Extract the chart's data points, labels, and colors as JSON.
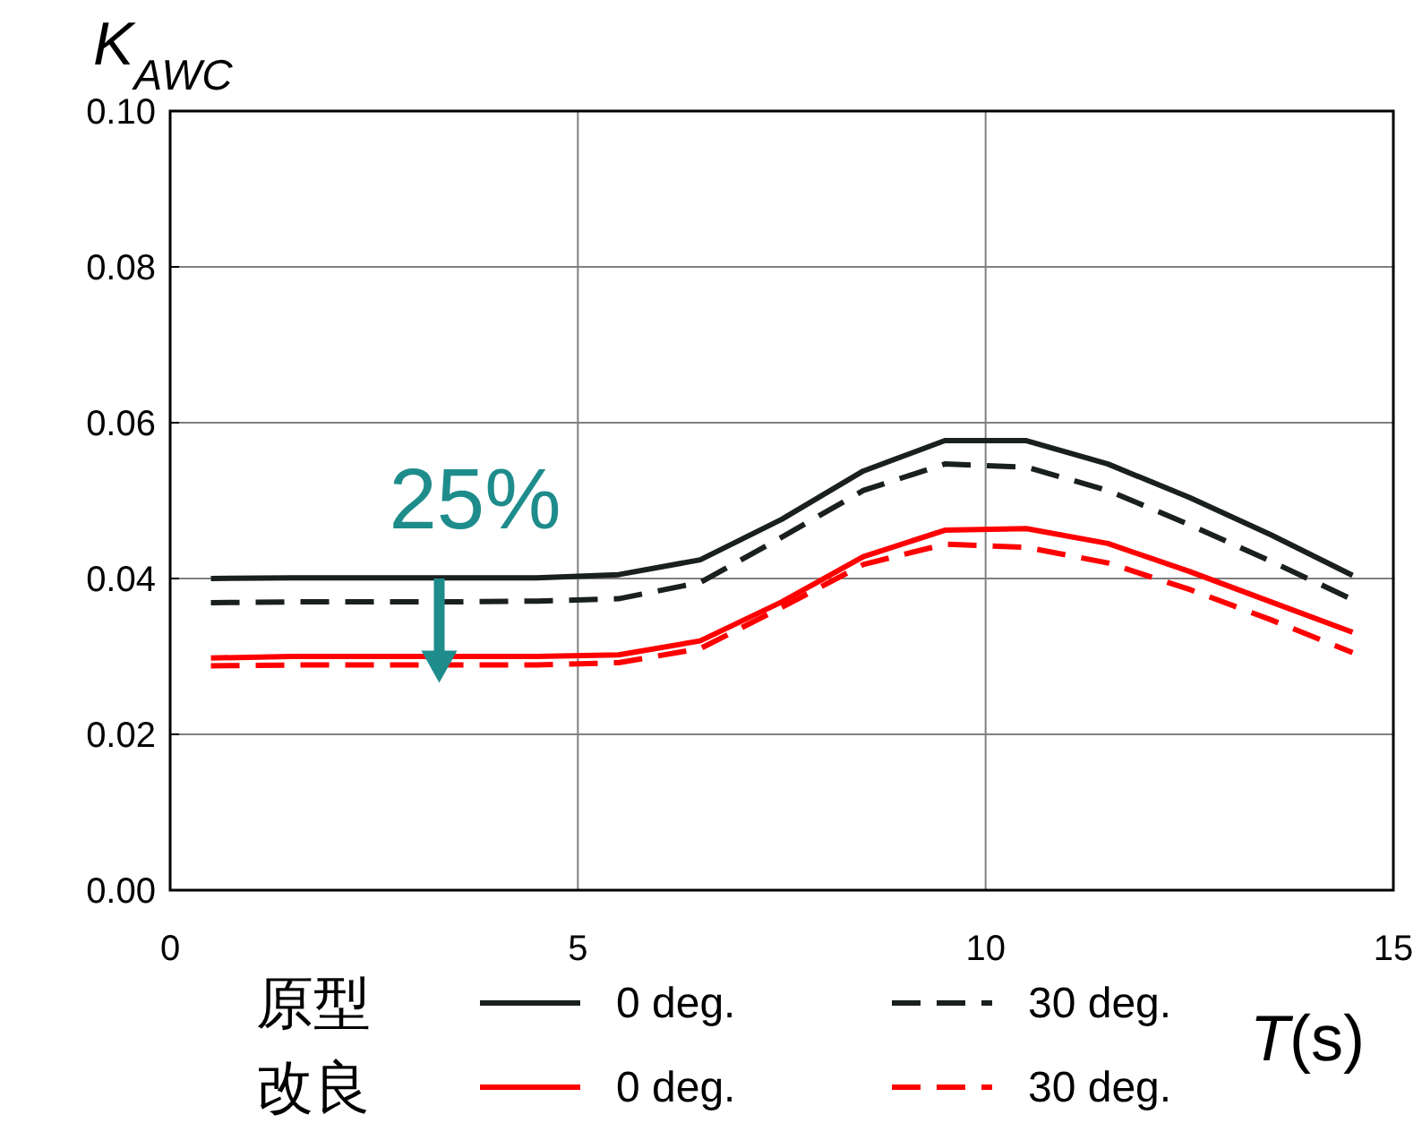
{
  "chart_data": {
    "type": "line",
    "ylabel": "K$_{AWC}$",
    "xlabel": "T(s)",
    "x": [
      0.5,
      1.5,
      2.5,
      3.5,
      4.5,
      5.5,
      6.5,
      7.5,
      8.5,
      9.5,
      10.5,
      11.5,
      12.5,
      13.5,
      14.5
    ],
    "xlim": [
      0,
      15
    ],
    "xticks": [
      0,
      5,
      10,
      15
    ],
    "ylim": [
      0,
      0.1
    ],
    "yticks": [
      {
        "value": 0,
        "label": "0.00"
      },
      {
        "value": 0.02,
        "label": "0.02"
      },
      {
        "value": 0.04,
        "label": "0.04"
      },
      {
        "value": 0.06,
        "label": "0.06"
      },
      {
        "value": 0.08,
        "label": "0.08"
      },
      {
        "value": 0.1,
        "label": "0.10"
      }
    ],
    "grid": true,
    "legend": "bottom",
    "marker": "none",
    "series": [
      {
        "name": "0 deg.",
        "color": "#1a1f1f",
        "line_style": "solid",
        "values": [
          0.04,
          0.0401,
          0.0401,
          0.0401,
          0.0401,
          0.0405,
          0.0424,
          0.0476,
          0.0538,
          0.0577,
          0.0577,
          0.0547,
          0.0504,
          0.0456,
          0.0404
        ]
      },
      {
        "name": "30 deg.",
        "color": "#1a1f1f",
        "line_style": "dashed",
        "values": [
          0.0369,
          0.037,
          0.037,
          0.037,
          0.0371,
          0.0374,
          0.0395,
          0.0453,
          0.0513,
          0.0547,
          0.0543,
          0.0513,
          0.0469,
          0.0422,
          0.0373
        ]
      },
      {
        "name": "0 deg.",
        "color": "#ff0000",
        "line_style": "solid",
        "values": [
          0.0298,
          0.03,
          0.03,
          0.03,
          0.03,
          0.0302,
          0.032,
          0.037,
          0.0428,
          0.0462,
          0.0464,
          0.0445,
          0.0409,
          0.037,
          0.0331
        ]
      },
      {
        "name": "30 deg.",
        "color": "#ff0000",
        "line_style": "dashed",
        "values": [
          0.0288,
          0.0289,
          0.0289,
          0.0289,
          0.0289,
          0.0292,
          0.031,
          0.0363,
          0.0418,
          0.0444,
          0.044,
          0.042,
          0.0386,
          0.0347,
          0.0305
        ]
      }
    ],
    "annotations": [
      {
        "text": "25%",
        "x": 3.3,
        "y": 0.04
      },
      "原型",
      "改良"
    ]
  }
}
